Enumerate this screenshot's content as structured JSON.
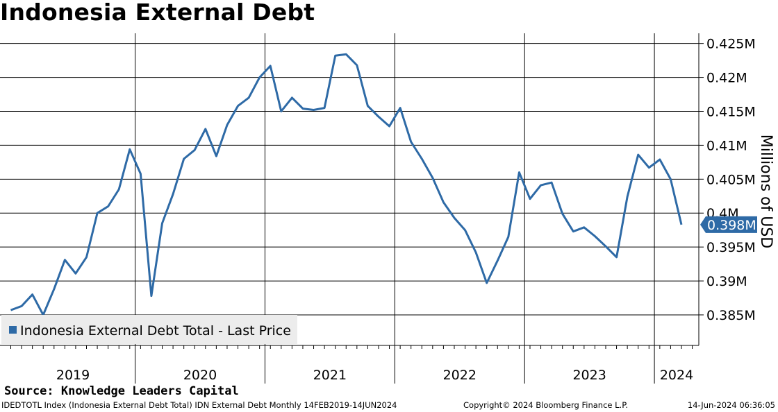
{
  "title": "Indonesia External Debt",
  "source": "Source: Knowledge Leaders Capital",
  "footer": {
    "left": "IDEDTOTL Index (Indonesia External Debt Total) IDN External Debt  Monthly 14FEB2019-14JUN2024",
    "middle": "Copyright© 2024 Bloomberg Finance L.P.",
    "right": "14-Jun-2024 06:36:05"
  },
  "chart_data": {
    "type": "line",
    "title": "Indonesia External Debt",
    "ylabel": "Millions of USD",
    "ylim": [
      0.3805,
      0.4265
    ],
    "yticks": [
      0.385,
      0.39,
      0.395,
      0.4,
      0.405,
      0.41,
      0.415,
      0.42,
      0.425
    ],
    "ytick_labels": [
      "0.385M",
      "0.39M",
      "0.395M",
      "0.4M",
      "0.405M",
      "0.41M",
      "0.415M",
      "0.42M",
      "0.425M"
    ],
    "xlim": [
      "2019-01-25",
      "2024-05-25"
    ],
    "year_labels": [
      "2019",
      "2020",
      "2021",
      "2022",
      "2023",
      "2024"
    ],
    "last_value_label": "0.398M",
    "legend": {
      "label": "Indonesia External Debt Total - Last Price",
      "position": "bottom-left"
    },
    "grid": true,
    "series": [
      {
        "name": "Indonesia External Debt Total - Last Price",
        "color": "#2e6aa6",
        "points": [
          [
            "2019-01",
            0.3857
          ],
          [
            "2019-02",
            0.3863
          ],
          [
            "2019-03",
            0.388
          ],
          [
            "2019-04",
            0.385
          ],
          [
            "2019-05",
            0.3888
          ],
          [
            "2019-06",
            0.3931
          ],
          [
            "2019-07",
            0.3911
          ],
          [
            "2019-08",
            0.3935
          ],
          [
            "2019-09",
            0.4
          ],
          [
            "2019-10",
            0.401
          ],
          [
            "2019-11",
            0.4035
          ],
          [
            "2019-12",
            0.4094
          ],
          [
            "2020-01",
            0.4058
          ],
          [
            "2020-02",
            0.3878
          ],
          [
            "2020-03",
            0.3985
          ],
          [
            "2020-04",
            0.4028
          ],
          [
            "2020-05",
            0.408
          ],
          [
            "2020-06",
            0.4093
          ],
          [
            "2020-07",
            0.4124
          ],
          [
            "2020-08",
            0.4084
          ],
          [
            "2020-09",
            0.413
          ],
          [
            "2020-10",
            0.4158
          ],
          [
            "2020-11",
            0.417
          ],
          [
            "2020-12",
            0.42
          ],
          [
            "2021-01",
            0.4217
          ],
          [
            "2021-02",
            0.415
          ],
          [
            "2021-03",
            0.417
          ],
          [
            "2021-04",
            0.4154
          ],
          [
            "2021-05",
            0.4152
          ],
          [
            "2021-06",
            0.4155
          ],
          [
            "2021-07",
            0.4232
          ],
          [
            "2021-08",
            0.4234
          ],
          [
            "2021-09",
            0.4218
          ],
          [
            "2021-10",
            0.4158
          ],
          [
            "2021-11",
            0.4142
          ],
          [
            "2021-12",
            0.4128
          ],
          [
            "2022-01",
            0.4155
          ],
          [
            "2022-02",
            0.4105
          ],
          [
            "2022-03",
            0.408
          ],
          [
            "2022-04",
            0.4052
          ],
          [
            "2022-05",
            0.4016
          ],
          [
            "2022-06",
            0.3993
          ],
          [
            "2022-07",
            0.3975
          ],
          [
            "2022-08",
            0.3942
          ],
          [
            "2022-09",
            0.3897
          ],
          [
            "2022-10",
            0.393
          ],
          [
            "2022-11",
            0.3965
          ],
          [
            "2022-12",
            0.406
          ],
          [
            "2023-01",
            0.4021
          ],
          [
            "2023-02",
            0.4041
          ],
          [
            "2023-03",
            0.4045
          ],
          [
            "2023-04",
            0.3999
          ],
          [
            "2023-05",
            0.3973
          ],
          [
            "2023-06",
            0.3979
          ],
          [
            "2023-07",
            0.3966
          ],
          [
            "2023-08",
            0.3951
          ],
          [
            "2023-09",
            0.3935
          ],
          [
            "2023-10",
            0.4024
          ],
          [
            "2023-11",
            0.4086
          ],
          [
            "2023-12",
            0.4067
          ],
          [
            "2024-01",
            0.4079
          ],
          [
            "2024-02",
            0.405
          ],
          [
            "2024-03",
            0.3983
          ]
        ]
      }
    ]
  }
}
